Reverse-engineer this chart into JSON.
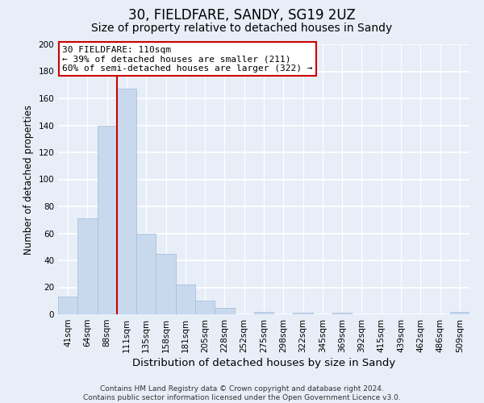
{
  "title": "30, FIELDFARE, SANDY, SG19 2UZ",
  "subtitle": "Size of property relative to detached houses in Sandy",
  "xlabel": "Distribution of detached houses by size in Sandy",
  "ylabel": "Number of detached properties",
  "categories": [
    "41sqm",
    "64sqm",
    "88sqm",
    "111sqm",
    "135sqm",
    "158sqm",
    "181sqm",
    "205sqm",
    "228sqm",
    "252sqm",
    "275sqm",
    "298sqm",
    "322sqm",
    "345sqm",
    "369sqm",
    "392sqm",
    "415sqm",
    "439sqm",
    "462sqm",
    "486sqm",
    "509sqm"
  ],
  "values": [
    13,
    71,
    140,
    167,
    60,
    45,
    22,
    10,
    5,
    0,
    2,
    0,
    1,
    0,
    1,
    0,
    0,
    0,
    0,
    0,
    2
  ],
  "bar_color": "#c8d9ee",
  "bar_edge_color": "#a0bcd8",
  "highlight_line_index": 3,
  "highlight_line_color": "#cc0000",
  "annotation_line1": "30 FIELDFARE: 110sqm",
  "annotation_line2": "← 39% of detached houses are smaller (211)",
  "annotation_line3": "60% of semi-detached houses are larger (322) →",
  "annotation_box_facecolor": "#ffffff",
  "annotation_box_edgecolor": "#cc0000",
  "ylim": [
    0,
    200
  ],
  "yticks": [
    0,
    20,
    40,
    60,
    80,
    100,
    120,
    140,
    160,
    180,
    200
  ],
  "footer_line1": "Contains HM Land Registry data © Crown copyright and database right 2024.",
  "footer_line2": "Contains public sector information licensed under the Open Government Licence v3.0.",
  "title_fontsize": 12,
  "subtitle_fontsize": 10,
  "xlabel_fontsize": 9.5,
  "ylabel_fontsize": 8.5,
  "tick_fontsize": 7.5,
  "annotation_fontsize": 8,
  "footer_fontsize": 6.5,
  "background_color": "#e8eef8",
  "plot_background_color": "#e8eef8",
  "grid_color": "#ffffff"
}
